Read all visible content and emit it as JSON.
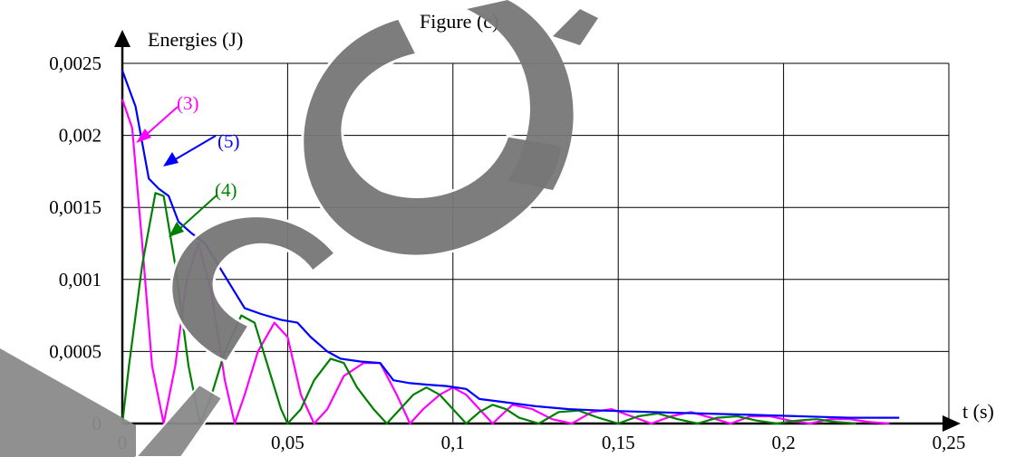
{
  "chart_data": {
    "type": "line",
    "title": "Figure (c)",
    "ylabel": "Energies (J)",
    "xlabel": "t (s)",
    "xlim": [
      0,
      0.25
    ],
    "ylim": [
      0,
      0.0025
    ],
    "xticks": [
      0,
      0.05,
      0.1,
      0.15,
      0.2,
      0.25
    ],
    "xtick_labels": [
      "0",
      "0,05",
      "0,1",
      "0,15",
      "0,2",
      "0,25"
    ],
    "yticks": [
      0,
      0.0005,
      0.001,
      0.0015,
      0.002,
      0.0025
    ],
    "ytick_labels": [
      "0",
      "0,0005",
      "0,001",
      "0,0015",
      "0,002",
      "0,0025"
    ],
    "grid": true,
    "series": [
      {
        "name": "(3)",
        "color": "#ff00ff",
        "points": [
          [
            0,
            0.00225
          ],
          [
            0.003,
            0.00205
          ],
          [
            0.006,
            0.00125
          ],
          [
            0.009,
            0.0004
          ],
          [
            0.0125,
            0
          ],
          [
            0.016,
            0.0004
          ],
          [
            0.0195,
            0.001
          ],
          [
            0.023,
            0.00125
          ],
          [
            0.027,
            0.0009
          ],
          [
            0.031,
            0.0003
          ],
          [
            0.034,
            0
          ],
          [
            0.037,
            0.0002
          ],
          [
            0.041,
            0.0005
          ],
          [
            0.046,
            0.0007
          ],
          [
            0.05,
            0.0006
          ],
          [
            0.054,
            0.0002
          ],
          [
            0.058,
            0
          ],
          [
            0.062,
            0.0001
          ],
          [
            0.067,
            0.00033
          ],
          [
            0.073,
            0.00042
          ],
          [
            0.078,
            0.00042
          ],
          [
            0.083,
            0.0002
          ],
          [
            0.087,
            0
          ],
          [
            0.091,
            0.0001
          ],
          [
            0.096,
            0.0002
          ],
          [
            0.1,
            0.00025
          ],
          [
            0.104,
            0.0002
          ],
          [
            0.108,
            0.0001
          ],
          [
            0.112,
            0
          ],
          [
            0.118,
            0.00013
          ],
          [
            0.124,
            0.0001
          ],
          [
            0.13,
            3e-05
          ],
          [
            0.136,
            0
          ],
          [
            0.142,
            8e-05
          ],
          [
            0.148,
            0.0001
          ],
          [
            0.154,
            5e-05
          ],
          [
            0.16,
            0
          ],
          [
            0.166,
            5e-05
          ],
          [
            0.172,
            8e-05
          ],
          [
            0.178,
            4e-05
          ],
          [
            0.184,
            0
          ],
          [
            0.19,
            5e-05
          ],
          [
            0.196,
            5e-05
          ],
          [
            0.202,
            2e-05
          ],
          [
            0.208,
            0
          ],
          [
            0.214,
            3e-05
          ],
          [
            0.22,
            3e-05
          ],
          [
            0.226,
            1e-05
          ],
          [
            0.232,
            0
          ]
        ]
      },
      {
        "name": "(4)",
        "color": "#008000",
        "points": [
          [
            0,
            0
          ],
          [
            0.002,
            0.0004
          ],
          [
            0.006,
            0.0011
          ],
          [
            0.01,
            0.0016
          ],
          [
            0.0125,
            0.00158
          ],
          [
            0.016,
            0.0011
          ],
          [
            0.02,
            0.0004
          ],
          [
            0.0235,
            0
          ],
          [
            0.027,
            0.0002
          ],
          [
            0.031,
            0.0005
          ],
          [
            0.036,
            0.00075
          ],
          [
            0.04,
            0.0007
          ],
          [
            0.044,
            0.0004
          ],
          [
            0.048,
            0.0001
          ],
          [
            0.05,
            0
          ],
          [
            0.054,
            0.0001
          ],
          [
            0.058,
            0.0003
          ],
          [
            0.063,
            0.00045
          ],
          [
            0.067,
            0.00042
          ],
          [
            0.071,
            0.00025
          ],
          [
            0.076,
            0.0001
          ],
          [
            0.08,
            0
          ],
          [
            0.084,
            0.0001
          ],
          [
            0.088,
            0.0002
          ],
          [
            0.092,
            0.00025
          ],
          [
            0.096,
            0.0002
          ],
          [
            0.1,
            0.0001
          ],
          [
            0.104,
            0
          ],
          [
            0.108,
            8e-05
          ],
          [
            0.112,
            0.00013
          ],
          [
            0.116,
            0.0001
          ],
          [
            0.12,
            4e-05
          ],
          [
            0.126,
            0
          ],
          [
            0.132,
            8e-05
          ],
          [
            0.138,
            9e-05
          ],
          [
            0.144,
            4e-05
          ],
          [
            0.15,
            0
          ],
          [
            0.156,
            5e-05
          ],
          [
            0.162,
            7e-05
          ],
          [
            0.168,
            3e-05
          ],
          [
            0.174,
            0
          ],
          [
            0.18,
            4e-05
          ],
          [
            0.186,
            5e-05
          ],
          [
            0.192,
            2e-05
          ],
          [
            0.198,
            0
          ],
          [
            0.204,
            2e-05
          ],
          [
            0.21,
            3e-05
          ],
          [
            0.216,
            1e-05
          ],
          [
            0.222,
            0
          ]
        ]
      },
      {
        "name": "(5)",
        "color": "#0000ff",
        "points": [
          [
            0,
            0.00245
          ],
          [
            0.004,
            0.0022
          ],
          [
            0.008,
            0.0017
          ],
          [
            0.011,
            0.00163
          ],
          [
            0.014,
            0.00158
          ],
          [
            0.017,
            0.0014
          ],
          [
            0.021,
            0.00132
          ],
          [
            0.025,
            0.00125
          ],
          [
            0.029,
            0.0011
          ],
          [
            0.033,
            0.00095
          ],
          [
            0.037,
            0.0008
          ],
          [
            0.042,
            0.00076
          ],
          [
            0.048,
            0.00072
          ],
          [
            0.053,
            0.0007
          ],
          [
            0.057,
            0.0006
          ],
          [
            0.062,
            0.0005
          ],
          [
            0.066,
            0.00045
          ],
          [
            0.072,
            0.00043
          ],
          [
            0.078,
            0.00042
          ],
          [
            0.082,
            0.0003
          ],
          [
            0.087,
            0.00028
          ],
          [
            0.092,
            0.00027
          ],
          [
            0.098,
            0.00026
          ],
          [
            0.104,
            0.00024
          ],
          [
            0.108,
            0.00017
          ],
          [
            0.115,
            0.00015
          ],
          [
            0.125,
            0.00012
          ],
          [
            0.135,
            0.0001
          ],
          [
            0.145,
            9e-05
          ],
          [
            0.16,
            8e-05
          ],
          [
            0.175,
            7e-05
          ],
          [
            0.19,
            6e-05
          ],
          [
            0.205,
            5e-05
          ],
          [
            0.22,
            4e-05
          ],
          [
            0.235,
            4e-05
          ]
        ]
      }
    ],
    "annotations": [
      {
        "text": "(3)",
        "series": "(3)",
        "color": "#ff00ff"
      },
      {
        "text": "(5)",
        "series": "(5)",
        "color": "#0000ff"
      },
      {
        "text": "(4)",
        "series": "(4)",
        "color": "#008000"
      }
    ]
  }
}
